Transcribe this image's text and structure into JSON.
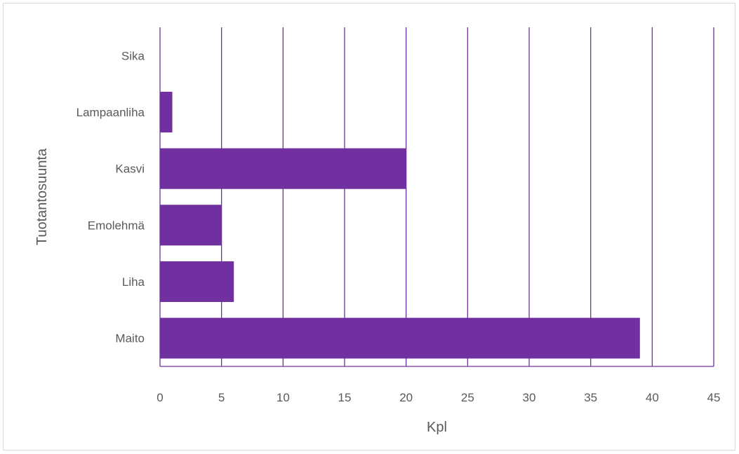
{
  "chart_data": {
    "type": "bar",
    "orientation": "horizontal",
    "categories": [
      "Maito",
      "Liha",
      "Emolehmä",
      "Kasvi",
      "Lampaanliha",
      "Sika"
    ],
    "values": [
      39,
      6,
      5,
      20,
      1,
      0
    ],
    "title": "",
    "xlabel": "Kpl",
    "ylabel": "Tuotantosuunta",
    "xlim": [
      0,
      45
    ],
    "x_ticks": [
      "0",
      "5",
      "10",
      "15",
      "20",
      "25",
      "30",
      "35",
      "40",
      "45"
    ],
    "grid": "vertical",
    "legend": "none"
  },
  "colors": {
    "bar": "#7030a0",
    "gridline": "#7030a0",
    "text": "#595959",
    "border": "#d9d9d9"
  }
}
